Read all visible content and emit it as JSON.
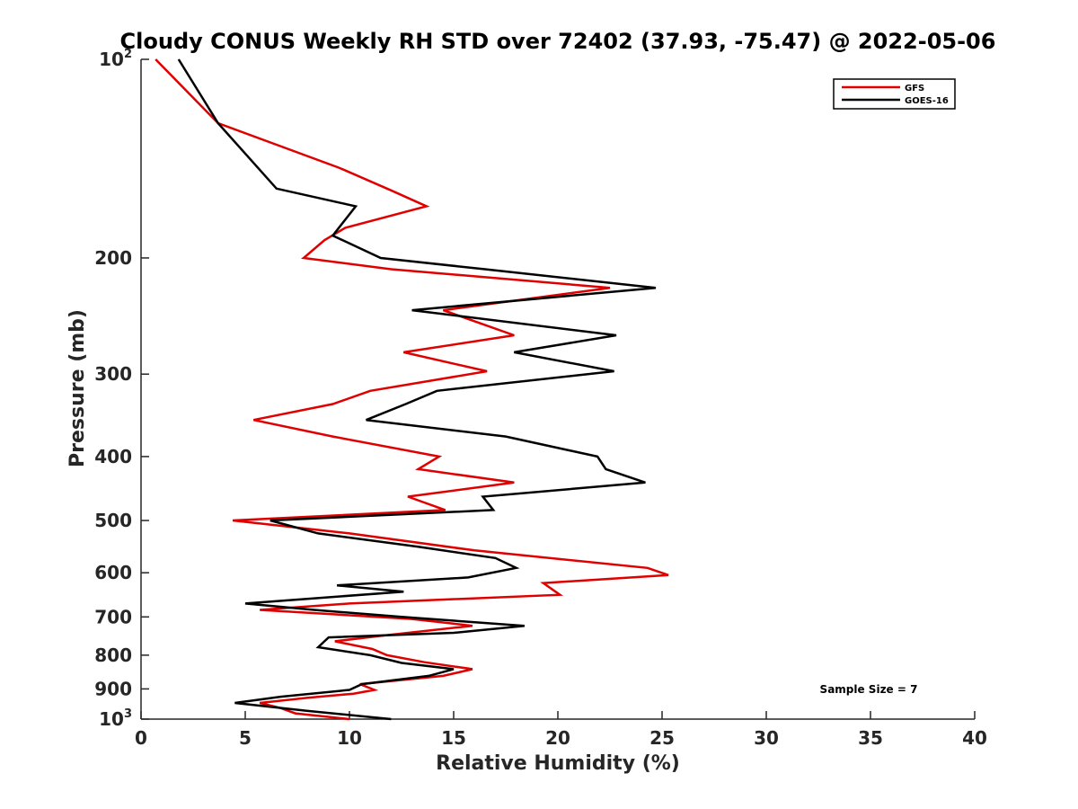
{
  "chart_data": {
    "type": "line",
    "title": "Cloudy CONUS Weekly RH STD over 72402 (37.93, -75.47) @ 2022-05-06",
    "xlabel": "Relative Humidity (%)",
    "ylabel": "Pressure (mb)",
    "xlim": [
      0,
      40
    ],
    "ylim": [
      100,
      1000
    ],
    "yscale": "log",
    "yreversed": true,
    "xticks": [
      0,
      5,
      10,
      15,
      20,
      25,
      30,
      35,
      40
    ],
    "xtick_labels": [
      "0",
      "5",
      "10",
      "15",
      "20",
      "25",
      "30",
      "35",
      "40"
    ],
    "yticks": [
      {
        "value": 100,
        "base": "10",
        "exp": "2"
      },
      {
        "value": 200,
        "base": "200",
        "exp": ""
      },
      {
        "value": 300,
        "base": "300",
        "exp": ""
      },
      {
        "value": 400,
        "base": "400",
        "exp": ""
      },
      {
        "value": 500,
        "base": "500",
        "exp": ""
      },
      {
        "value": 600,
        "base": "600",
        "exp": ""
      },
      {
        "value": 700,
        "base": "700",
        "exp": ""
      },
      {
        "value": 800,
        "base": "800",
        "exp": ""
      },
      {
        "value": 900,
        "base": "900",
        "exp": ""
      },
      {
        "value": 1000,
        "base": "10",
        "exp": "3"
      }
    ],
    "grid": false,
    "legend_position": "top-right",
    "annotation": "Sample Size = 7",
    "series": [
      {
        "name": "GFS",
        "color": "#e00000",
        "points": [
          [
            0.7,
            100
          ],
          [
            3.7,
            125
          ],
          [
            9.5,
            146
          ],
          [
            12.0,
            158
          ],
          [
            13.7,
            167
          ],
          [
            9.8,
            180
          ],
          [
            8.8,
            188
          ],
          [
            7.8,
            200
          ],
          [
            12.0,
            208
          ],
          [
            22.5,
            222
          ],
          [
            14.5,
            240
          ],
          [
            17.9,
            262
          ],
          [
            12.6,
            278
          ],
          [
            16.6,
            297
          ],
          [
            11.0,
            318
          ],
          [
            9.2,
            333
          ],
          [
            5.4,
            352
          ],
          [
            9.2,
            373
          ],
          [
            14.3,
            400
          ],
          [
            13.3,
            418
          ],
          [
            17.9,
            438
          ],
          [
            12.8,
            460
          ],
          [
            14.6,
            482
          ],
          [
            4.4,
            500
          ],
          [
            10.0,
            523
          ],
          [
            16.0,
            555
          ],
          [
            24.3,
            590
          ],
          [
            25.3,
            605
          ],
          [
            19.3,
            622
          ],
          [
            20.1,
            648
          ],
          [
            10.0,
            668
          ],
          [
            5.7,
            683
          ],
          [
            13.0,
            705
          ],
          [
            15.9,
            722
          ],
          [
            11.5,
            748
          ],
          [
            9.3,
            762
          ],
          [
            11.1,
            783
          ],
          [
            11.8,
            800
          ],
          [
            13.6,
            820
          ],
          [
            15.9,
            840
          ],
          [
            14.5,
            860
          ],
          [
            10.5,
            885
          ],
          [
            11.2,
            903
          ],
          [
            10.2,
            915
          ],
          [
            8.0,
            928
          ],
          [
            5.7,
            945
          ],
          [
            6.7,
            962
          ],
          [
            7.4,
            980
          ],
          [
            10.0,
            1000
          ]
        ]
      },
      {
        "name": "GOES-16",
        "color": "#000000",
        "points": [
          [
            1.8,
            100
          ],
          [
            3.7,
            125
          ],
          [
            6.5,
            157
          ],
          [
            10.3,
            167
          ],
          [
            9.2,
            185
          ],
          [
            11.5,
            200
          ],
          [
            16.5,
            208
          ],
          [
            24.7,
            222
          ],
          [
            13.0,
            240
          ],
          [
            22.8,
            262
          ],
          [
            17.9,
            278
          ],
          [
            22.7,
            297
          ],
          [
            14.2,
            318
          ],
          [
            12.7,
            333
          ],
          [
            10.8,
            352
          ],
          [
            17.5,
            373
          ],
          [
            21.9,
            400
          ],
          [
            22.3,
            418
          ],
          [
            24.2,
            438
          ],
          [
            16.4,
            460
          ],
          [
            16.9,
            482
          ],
          [
            6.2,
            500
          ],
          [
            8.5,
            523
          ],
          [
            13.3,
            548
          ],
          [
            17.0,
            570
          ],
          [
            18.0,
            590
          ],
          [
            15.7,
            610
          ],
          [
            9.4,
            627
          ],
          [
            12.6,
            641
          ],
          [
            5.0,
            668
          ],
          [
            8.3,
            683
          ],
          [
            12.5,
            700
          ],
          [
            18.4,
            722
          ],
          [
            15.0,
            740
          ],
          [
            9.0,
            752
          ],
          [
            8.5,
            778
          ],
          [
            11.0,
            800
          ],
          [
            12.5,
            822
          ],
          [
            15.0,
            840
          ],
          [
            13.8,
            860
          ],
          [
            10.6,
            885
          ],
          [
            10.0,
            903
          ],
          [
            6.7,
            925
          ],
          [
            4.5,
            945
          ],
          [
            8.0,
            972
          ],
          [
            12.0,
            1000
          ]
        ]
      }
    ]
  }
}
